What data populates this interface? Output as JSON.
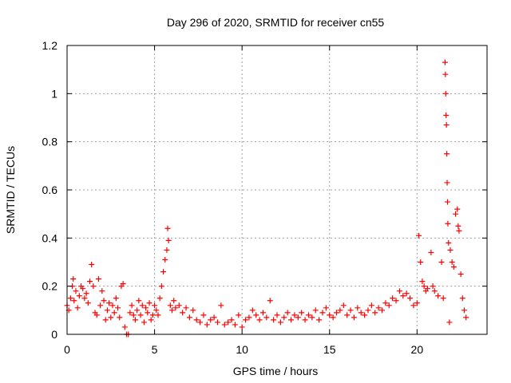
{
  "chart_data": {
    "type": "scatter",
    "title": "Day 296 of 2020, SRMTID for receiver cn55",
    "xlabel": "GPS time / hours",
    "ylabel": "SRMTID / TECUs",
    "xlim": [
      0,
      24
    ],
    "ylim": [
      0,
      1.2
    ],
    "xticks": [
      0,
      5,
      10,
      15,
      20
    ],
    "yticks": [
      0,
      0.2,
      0.4,
      0.6,
      0.8,
      1,
      1.2
    ],
    "ytick_labels": [
      "0",
      "0.2",
      "0.4",
      "0.6",
      "0.8",
      "1",
      "1.2"
    ],
    "grid": true,
    "marker": "+",
    "color": "#ff0000",
    "series": [
      {
        "name": "SRMTID",
        "points": [
          [
            0.0,
            0.12
          ],
          [
            0.1,
            0.1
          ],
          [
            0.2,
            0.15
          ],
          [
            0.3,
            0.2
          ],
          [
            0.35,
            0.23
          ],
          [
            0.4,
            0.14
          ],
          [
            0.5,
            0.18
          ],
          [
            0.6,
            0.11
          ],
          [
            0.7,
            0.16
          ],
          [
            0.8,
            0.2
          ],
          [
            0.9,
            0.19
          ],
          [
            1.0,
            0.15
          ],
          [
            1.1,
            0.17
          ],
          [
            1.2,
            0.13
          ],
          [
            1.3,
            0.22
          ],
          [
            1.4,
            0.29
          ],
          [
            1.5,
            0.2
          ],
          [
            1.6,
            0.09
          ],
          [
            1.7,
            0.08
          ],
          [
            1.8,
            0.23
          ],
          [
            1.9,
            0.12
          ],
          [
            2.0,
            0.18
          ],
          [
            2.1,
            0.14
          ],
          [
            2.2,
            0.06
          ],
          [
            2.3,
            0.1
          ],
          [
            2.4,
            0.13
          ],
          [
            2.5,
            0.07
          ],
          [
            2.6,
            0.12
          ],
          [
            2.7,
            0.09
          ],
          [
            2.8,
            0.15
          ],
          [
            2.9,
            0.11
          ],
          [
            3.0,
            0.07
          ],
          [
            3.1,
            0.2
          ],
          [
            3.2,
            0.21
          ],
          [
            3.3,
            0.03
          ],
          [
            3.4,
            0.0
          ],
          [
            3.5,
            0.0
          ],
          [
            3.6,
            0.09
          ],
          [
            3.7,
            0.12
          ],
          [
            3.8,
            0.08
          ],
          [
            3.9,
            0.06
          ],
          [
            4.0,
            0.1
          ],
          [
            4.1,
            0.14
          ],
          [
            4.2,
            0.08
          ],
          [
            4.3,
            0.12
          ],
          [
            4.4,
            0.05
          ],
          [
            4.5,
            0.11
          ],
          [
            4.6,
            0.09
          ],
          [
            4.7,
            0.13
          ],
          [
            4.8,
            0.06
          ],
          [
            4.9,
            0.08
          ],
          [
            5.0,
            0.12
          ],
          [
            5.1,
            0.1
          ],
          [
            5.2,
            0.08
          ],
          [
            5.3,
            0.15
          ],
          [
            5.4,
            0.2
          ],
          [
            5.5,
            0.26
          ],
          [
            5.6,
            0.31
          ],
          [
            5.7,
            0.35
          ],
          [
            5.75,
            0.44
          ],
          [
            5.8,
            0.39
          ],
          [
            5.9,
            0.12
          ],
          [
            6.0,
            0.1
          ],
          [
            6.1,
            0.14
          ],
          [
            6.2,
            0.11
          ],
          [
            6.4,
            0.12
          ],
          [
            6.6,
            0.09
          ],
          [
            6.8,
            0.11
          ],
          [
            7.0,
            0.07
          ],
          [
            7.2,
            0.1
          ],
          [
            7.4,
            0.06
          ],
          [
            7.6,
            0.05
          ],
          [
            7.8,
            0.08
          ],
          [
            8.0,
            0.04
          ],
          [
            8.2,
            0.06
          ],
          [
            8.4,
            0.07
          ],
          [
            8.6,
            0.05
          ],
          [
            8.8,
            0.12
          ],
          [
            9.0,
            0.04
          ],
          [
            9.2,
            0.05
          ],
          [
            9.4,
            0.06
          ],
          [
            9.6,
            0.04
          ],
          [
            9.8,
            0.08
          ],
          [
            10.0,
            0.03
          ],
          [
            10.2,
            0.06
          ],
          [
            10.4,
            0.07
          ],
          [
            10.6,
            0.1
          ],
          [
            10.8,
            0.08
          ],
          [
            11.0,
            0.06
          ],
          [
            11.2,
            0.09
          ],
          [
            11.4,
            0.07
          ],
          [
            11.6,
            0.14
          ],
          [
            11.8,
            0.06
          ],
          [
            12.0,
            0.08
          ],
          [
            12.2,
            0.05
          ],
          [
            12.4,
            0.07
          ],
          [
            12.6,
            0.09
          ],
          [
            12.8,
            0.06
          ],
          [
            13.0,
            0.08
          ],
          [
            13.2,
            0.07
          ],
          [
            13.4,
            0.09
          ],
          [
            13.6,
            0.06
          ],
          [
            13.8,
            0.08
          ],
          [
            14.0,
            0.07
          ],
          [
            14.2,
            0.1
          ],
          [
            14.4,
            0.06
          ],
          [
            14.6,
            0.09
          ],
          [
            14.8,
            0.11
          ],
          [
            15.0,
            0.08
          ],
          [
            15.2,
            0.07
          ],
          [
            15.4,
            0.09
          ],
          [
            15.6,
            0.1
          ],
          [
            15.8,
            0.12
          ],
          [
            16.0,
            0.08
          ],
          [
            16.2,
            0.1
          ],
          [
            16.4,
            0.07
          ],
          [
            16.6,
            0.11
          ],
          [
            16.8,
            0.09
          ],
          [
            17.0,
            0.08
          ],
          [
            17.2,
            0.1
          ],
          [
            17.4,
            0.12
          ],
          [
            17.6,
            0.09
          ],
          [
            17.8,
            0.11
          ],
          [
            18.0,
            0.1
          ],
          [
            18.2,
            0.13
          ],
          [
            18.4,
            0.12
          ],
          [
            18.6,
            0.15
          ],
          [
            18.8,
            0.14
          ],
          [
            19.0,
            0.18
          ],
          [
            19.2,
            0.16
          ],
          [
            19.4,
            0.17
          ],
          [
            19.6,
            0.15
          ],
          [
            19.8,
            0.12
          ],
          [
            20.0,
            0.13
          ],
          [
            20.1,
            0.41
          ],
          [
            20.2,
            0.3
          ],
          [
            20.3,
            0.22
          ],
          [
            20.4,
            0.2
          ],
          [
            20.5,
            0.18
          ],
          [
            20.6,
            0.19
          ],
          [
            20.8,
            0.34
          ],
          [
            20.9,
            0.2
          ],
          [
            21.0,
            0.18
          ],
          [
            21.2,
            0.16
          ],
          [
            21.4,
            0.3
          ],
          [
            21.5,
            0.15
          ],
          [
            21.6,
            1.13
          ],
          [
            21.62,
            1.08
          ],
          [
            21.64,
            1.0
          ],
          [
            21.66,
            0.91
          ],
          [
            21.68,
            0.87
          ],
          [
            21.7,
            0.75
          ],
          [
            21.72,
            0.63
          ],
          [
            21.74,
            0.55
          ],
          [
            21.76,
            0.46
          ],
          [
            21.8,
            0.38
          ],
          [
            21.85,
            0.05
          ],
          [
            21.9,
            0.35
          ],
          [
            22.0,
            0.3
          ],
          [
            22.1,
            0.28
          ],
          [
            22.2,
            0.5
          ],
          [
            22.3,
            0.52
          ],
          [
            22.35,
            0.45
          ],
          [
            22.4,
            0.43
          ],
          [
            22.5,
            0.25
          ],
          [
            22.6,
            0.15
          ],
          [
            22.7,
            0.1
          ],
          [
            22.8,
            0.07
          ]
        ]
      }
    ]
  }
}
